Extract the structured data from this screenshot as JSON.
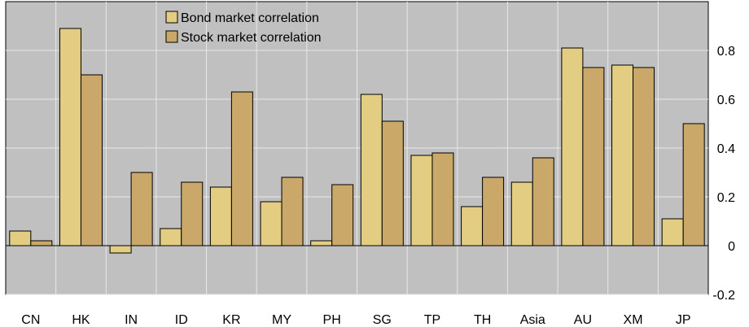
{
  "chart_data": {
    "type": "bar",
    "categories": [
      "CN",
      "HK",
      "IN",
      "ID",
      "KR",
      "MY",
      "PH",
      "SG",
      "TP",
      "TH",
      "Asia",
      "AU",
      "XM",
      "JP"
    ],
    "series": [
      {
        "name": "Bond market correlation",
        "color": "#e3cd82",
        "values": [
          0.06,
          0.89,
          -0.03,
          0.07,
          0.24,
          0.18,
          0.02,
          0.62,
          0.37,
          0.16,
          0.26,
          0.81,
          0.74,
          0.11
        ]
      },
      {
        "name": "Stock market correlation",
        "color": "#c9a86a",
        "values": [
          0.02,
          0.7,
          0.3,
          0.26,
          0.63,
          0.28,
          0.25,
          0.51,
          0.38,
          0.28,
          0.36,
          0.73,
          0.73,
          0.5
        ]
      }
    ],
    "yticks": [
      -0.2,
      0,
      0.2,
      0.4,
      0.6,
      0.8
    ],
    "ytick_labels": [
      "-0.2",
      "0",
      "0.2",
      "0.4",
      "0.6",
      "0.8"
    ],
    "ylim": [
      -0.2,
      1.0
    ],
    "grid": true,
    "legend_position": "top-center",
    "plot_background": "#c0c0c0",
    "grid_color": "#e8e8e8",
    "title": "",
    "xlabel": "",
    "ylabel": ""
  }
}
